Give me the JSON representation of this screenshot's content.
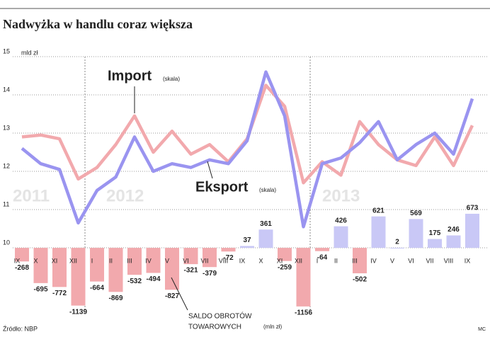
{
  "chart_data": {
    "type": "combo",
    "title": "Nadwyżka w handlu coraz większa",
    "y_unit": "mld zł",
    "categories": [
      "IX",
      "X",
      "XI",
      "XII",
      "I",
      "II",
      "III",
      "IV",
      "V",
      "VI",
      "VII",
      "VIII",
      "IX",
      "X",
      "XI",
      "XII",
      "I",
      "II",
      "III",
      "IV",
      "V",
      "VI",
      "VII",
      "VIII",
      "IX"
    ],
    "years": [
      "2011",
      "2012",
      "2013"
    ],
    "ylim": [
      10,
      15
    ],
    "yticks": [
      10,
      11,
      12,
      13,
      14,
      15
    ],
    "grid": true,
    "series": [
      {
        "name": "Import",
        "note": "(skala)",
        "color": "#f2a9ad",
        "label_color": "#e8303a",
        "values": [
          12.9,
          12.95,
          12.85,
          11.8,
          12.1,
          12.7,
          13.45,
          12.5,
          13.05,
          12.45,
          12.7,
          12.25,
          12.85,
          14.25,
          13.7,
          11.7,
          12.25,
          11.9,
          13.3,
          12.7,
          12.3,
          12.15,
          12.9,
          12.15,
          13.2
        ]
      },
      {
        "name": "Eksport",
        "note": "(skala)",
        "color": "#9a94f0",
        "label_color": "#6b5ce6",
        "values": [
          12.6,
          12.2,
          12.05,
          10.65,
          11.5,
          11.85,
          12.9,
          12.0,
          12.2,
          12.1,
          12.3,
          12.2,
          12.8,
          14.6,
          13.45,
          10.55,
          12.2,
          12.35,
          12.75,
          13.3,
          12.3,
          12.7,
          13.0,
          12.45,
          13.9
        ]
      }
    ],
    "bar_series": {
      "name_lines": [
        "SALDO OBROTÓW",
        "TOWAROWYCH"
      ],
      "unit": "(mln zł)",
      "negative_color": "#f2a9ad",
      "positive_color": "#c9c8f6",
      "axis": "y2",
      "values": [
        -268,
        -695,
        -772,
        -1139,
        -664,
        -869,
        -532,
        -494,
        -827,
        -321,
        -379,
        -72,
        37,
        361,
        -259,
        -1156,
        -64,
        426,
        -502,
        621,
        2,
        569,
        175,
        246,
        673
      ]
    },
    "y2lim": [
      -1200,
      700
    ],
    "source": "Źródło: NBP",
    "credit": "MC"
  }
}
